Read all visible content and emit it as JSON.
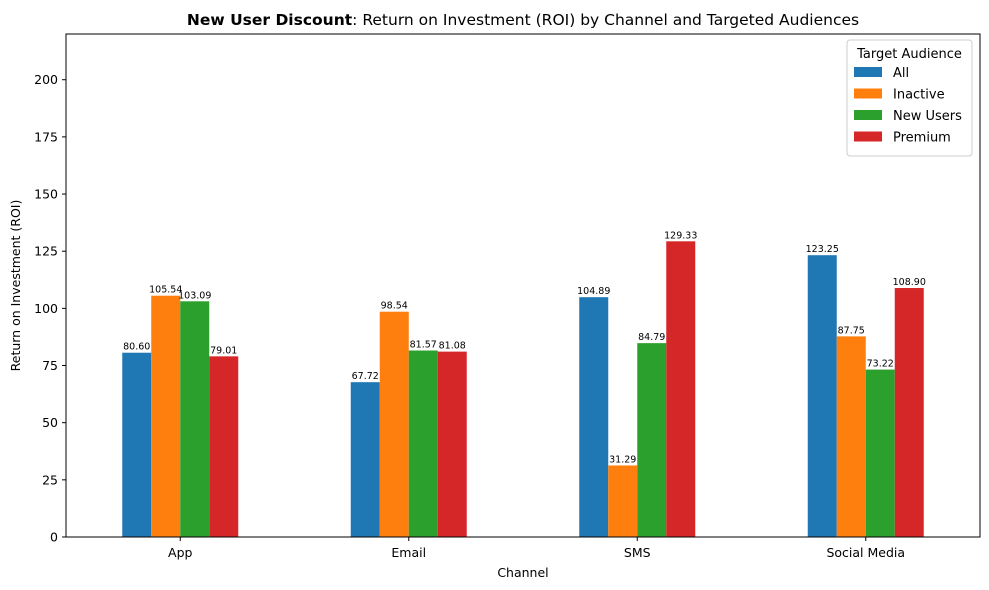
{
  "chart_data": {
    "type": "bar",
    "title_bold": "New User Discount",
    "title_rest": ": Return on Investment (ROI) by Channel and Targeted Audiences",
    "xlabel": "Channel",
    "ylabel": "Return on Investment (ROI)",
    "ylim": [
      0,
      220
    ],
    "yticks": [
      0,
      25,
      50,
      75,
      100,
      125,
      150,
      175,
      200
    ],
    "categories": [
      "App",
      "Email",
      "SMS",
      "Social Media"
    ],
    "legend_title": "Target Audience",
    "legend_position": "top-right",
    "grid": false,
    "series": [
      {
        "name": "All",
        "color": "#1f77b4",
        "values": [
          80.6,
          67.72,
          104.89,
          123.25
        ],
        "labels": [
          "80.60",
          "67.72",
          "104.89",
          "123.25"
        ]
      },
      {
        "name": "Inactive",
        "color": "#ff7f0e",
        "values": [
          105.54,
          98.54,
          31.29,
          87.75
        ],
        "labels": [
          "105.54",
          "98.54",
          "31.29",
          "87.75"
        ]
      },
      {
        "name": "New Users",
        "color": "#2ca02c",
        "values": [
          103.09,
          81.57,
          84.79,
          73.22
        ],
        "labels": [
          "103.09",
          "81.57",
          "84.79",
          "73.22"
        ]
      },
      {
        "name": "Premium",
        "color": "#d62728",
        "values": [
          79.01,
          81.08,
          129.33,
          108.9
        ],
        "labels": [
          "79.01",
          "81.08",
          "129.33",
          "108.90"
        ]
      }
    ]
  }
}
